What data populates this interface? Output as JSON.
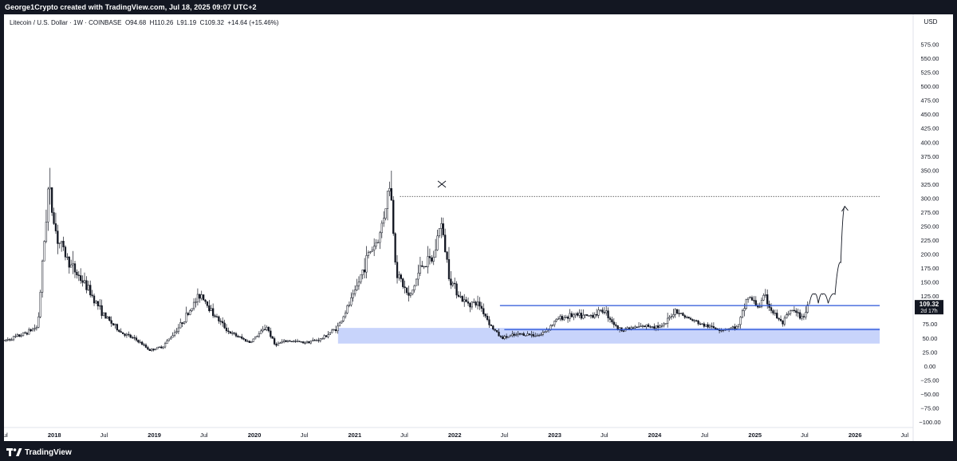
{
  "header": {
    "text": "George1Crypto created with TradingView.com, Jul 18, 2025 09:07 UTC+2"
  },
  "legend": {
    "symbol": "Litecoin / U.S. Dollar · 1W · COINBASE",
    "open": "O94.68",
    "high": "H110.26",
    "low": "L91.19",
    "close": "C109.32",
    "change": "+14.64 (+15.46%)"
  },
  "footer": {
    "brand": "TradingView"
  },
  "colors": {
    "background": "#ffffff",
    "candle": "#131722",
    "support_zone": "#c8d4fb",
    "resistance_line": "#2953d9",
    "price_tag_bg": "#131722"
  },
  "chart_data": {
    "type": "candlestick",
    "currency": "USD",
    "ylim": [
      -110,
      600
    ],
    "y_ticks": [
      -100,
      -75,
      -50,
      -25,
      0,
      25,
      50,
      75,
      100,
      125,
      150,
      175,
      200,
      225,
      250,
      275,
      300,
      325,
      350,
      375,
      400,
      425,
      450,
      475,
      500,
      525,
      550,
      575
    ],
    "y_tick_labels": [
      "−100.00",
      "−75.00",
      "−50.00",
      "−25.00",
      "0.00",
      "25.00",
      "50.00",
      "75.00",
      "100.00",
      "125.00",
      "150.00",
      "175.00",
      "200.00",
      "225.00",
      "250.00",
      "275.00",
      "300.00",
      "325.00",
      "350.00",
      "375.00",
      "400.00",
      "425.00",
      "450.00",
      "475.00",
      "500.00",
      "525.00",
      "550.00",
      "575.00"
    ],
    "x_range": [
      "2017-07-01",
      "2026-08-01"
    ],
    "x_ticks": [
      {
        "date": "2017-07-01",
        "label": "Jul"
      },
      {
        "date": "2018-01-01",
        "label": "2018"
      },
      {
        "date": "2018-07-01",
        "label": "Jul"
      },
      {
        "date": "2019-01-01",
        "label": "2019"
      },
      {
        "date": "2019-07-01",
        "label": "Jul"
      },
      {
        "date": "2020-01-01",
        "label": "2020"
      },
      {
        "date": "2020-07-01",
        "label": "Jul"
      },
      {
        "date": "2021-01-01",
        "label": "2021"
      },
      {
        "date": "2021-07-01",
        "label": "Jul"
      },
      {
        "date": "2022-01-01",
        "label": "2022"
      },
      {
        "date": "2022-07-01",
        "label": "Jul"
      },
      {
        "date": "2023-01-01",
        "label": "2023"
      },
      {
        "date": "2023-07-01",
        "label": "Jul"
      },
      {
        "date": "2024-01-01",
        "label": "2024"
      },
      {
        "date": "2024-07-01",
        "label": "Jul"
      },
      {
        "date": "2025-01-01",
        "label": "2025"
      },
      {
        "date": "2025-07-01",
        "label": "Jul"
      },
      {
        "date": "2026-01-01",
        "label": "2026"
      },
      {
        "date": "2026-07-01",
        "label": "Jul"
      }
    ],
    "price_path": [
      [
        "2017-07-01",
        45
      ],
      [
        "2017-09-01",
        55
      ],
      [
        "2017-11-01",
        70
      ],
      [
        "2017-12-10",
        320
      ],
      [
        "2018-01-10",
        230
      ],
      [
        "2018-03-01",
        180
      ],
      [
        "2018-05-01",
        140
      ],
      [
        "2018-07-01",
        90
      ],
      [
        "2018-09-01",
        60
      ],
      [
        "2018-11-01",
        45
      ],
      [
        "2018-12-15",
        28
      ],
      [
        "2019-02-01",
        35
      ],
      [
        "2019-04-01",
        70
      ],
      [
        "2019-06-20",
        130
      ],
      [
        "2019-08-01",
        95
      ],
      [
        "2019-10-01",
        60
      ],
      [
        "2019-12-15",
        42
      ],
      [
        "2020-02-15",
        70
      ],
      [
        "2020-03-15",
        38
      ],
      [
        "2020-05-01",
        45
      ],
      [
        "2020-07-01",
        42
      ],
      [
        "2020-09-01",
        48
      ],
      [
        "2020-11-01",
        70
      ],
      [
        "2021-01-01",
        130
      ],
      [
        "2021-02-20",
        200
      ],
      [
        "2021-04-01",
        230
      ],
      [
        "2021-05-10",
        330
      ],
      [
        "2021-06-01",
        170
      ],
      [
        "2021-07-20",
        120
      ],
      [
        "2021-09-01",
        180
      ],
      [
        "2021-10-15",
        190
      ],
      [
        "2021-11-10",
        260
      ],
      [
        "2021-12-15",
        155
      ],
      [
        "2022-02-01",
        115
      ],
      [
        "2022-04-01",
        110
      ],
      [
        "2022-05-15",
        70
      ],
      [
        "2022-06-20",
        50
      ],
      [
        "2022-09-01",
        57
      ],
      [
        "2022-11-10",
        55
      ],
      [
        "2023-01-15",
        85
      ],
      [
        "2023-03-01",
        90
      ],
      [
        "2023-05-01",
        88
      ],
      [
        "2023-07-01",
        100
      ],
      [
        "2023-08-20",
        65
      ],
      [
        "2023-10-15",
        68
      ],
      [
        "2023-12-15",
        72
      ],
      [
        "2024-02-01",
        70
      ],
      [
        "2024-03-15",
        100
      ],
      [
        "2024-05-01",
        85
      ],
      [
        "2024-07-01",
        72
      ],
      [
        "2024-09-01",
        65
      ],
      [
        "2024-11-01",
        70
      ],
      [
        "2024-12-05",
        125
      ],
      [
        "2025-01-15",
        105
      ],
      [
        "2025-02-05",
        125
      ],
      [
        "2025-03-01",
        100
      ],
      [
        "2025-04-10",
        75
      ],
      [
        "2025-05-15",
        100
      ],
      [
        "2025-06-20",
        85
      ],
      [
        "2025-07-18",
        109.32
      ]
    ],
    "current_price": {
      "value": 109.32,
      "label": "109.32",
      "countdown": "2d 17h"
    },
    "annotations": {
      "support_zone": {
        "from": "2020-11-01",
        "to": "2026-04-01",
        "low": 40,
        "high": 68
      },
      "range_top_line": {
        "from": "2022-06-15",
        "to": "2026-04-01",
        "value": 108
      },
      "range_bottom_line": {
        "from": "2022-07-01",
        "to": "2026-04-01",
        "value": 65
      },
      "dotted_high_line": {
        "from": "2021-06-15",
        "to": "2026-04-01",
        "value": 303
      },
      "x_marker": {
        "date": "2021-11-15",
        "value": 325
      },
      "projection_arrow": {
        "points": [
          [
            "2025-07-18",
            110
          ],
          [
            "2025-08-05",
            128
          ],
          [
            "2025-08-20",
            112
          ],
          [
            "2025-09-05",
            128
          ],
          [
            "2025-09-25",
            112
          ],
          [
            "2025-10-20",
            128
          ],
          [
            "2025-11-10",
            185
          ],
          [
            "2025-11-25",
            285
          ]
        ]
      }
    }
  }
}
